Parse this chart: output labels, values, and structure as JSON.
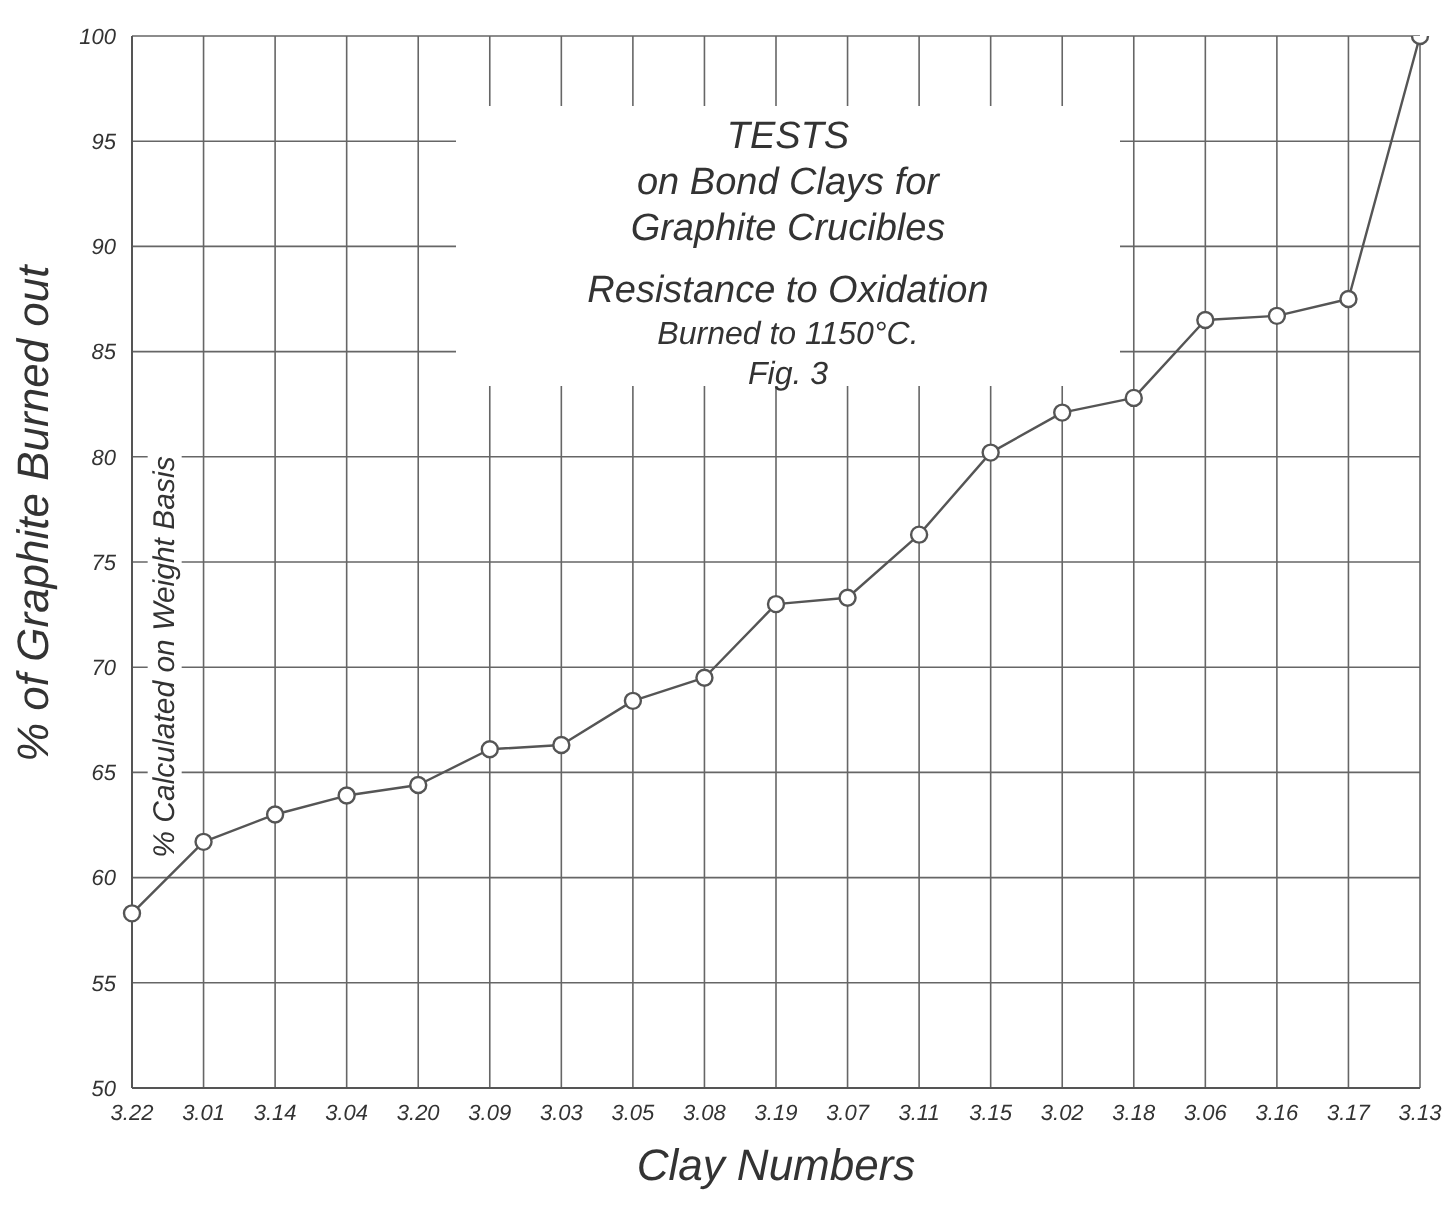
{
  "chart_data": {
    "type": "line",
    "title": "TESTS\non Bond Clays for\nGraphite Crucibles",
    "subtitle": "Resistance to Oxidation\nBurned to 1150°C.\nFig. 3",
    "xlabel": "Clay Numbers",
    "ylabel": "% of Graphite Burned out",
    "annotations": [
      "% Calculated on Weight Basis"
    ],
    "categories": [
      "3.22",
      "3.01",
      "3.14",
      "3.04",
      "3.20",
      "3.09",
      "3.03",
      "3.05",
      "3.08",
      "3.19",
      "3.07",
      "3.11",
      "3.15",
      "3.02",
      "3.18",
      "3.06",
      "3.16",
      "3.17",
      "3.13"
    ],
    "series": [
      {
        "color": "#555555",
        "values": [
          58.3,
          61.7,
          63.0,
          63.9,
          64.4,
          66.1,
          66.3,
          68.4,
          69.5,
          73.0,
          73.3,
          76.3,
          80.2,
          82.1,
          82.8,
          86.5,
          86.7,
          87.5,
          100
        ]
      }
    ],
    "ylim": [
      50,
      100
    ],
    "yticks": [
      50,
      55,
      60,
      65,
      70,
      75,
      80,
      85,
      90,
      95,
      100
    ],
    "grid": true,
    "marker": "circle",
    "line_style": "solid"
  }
}
